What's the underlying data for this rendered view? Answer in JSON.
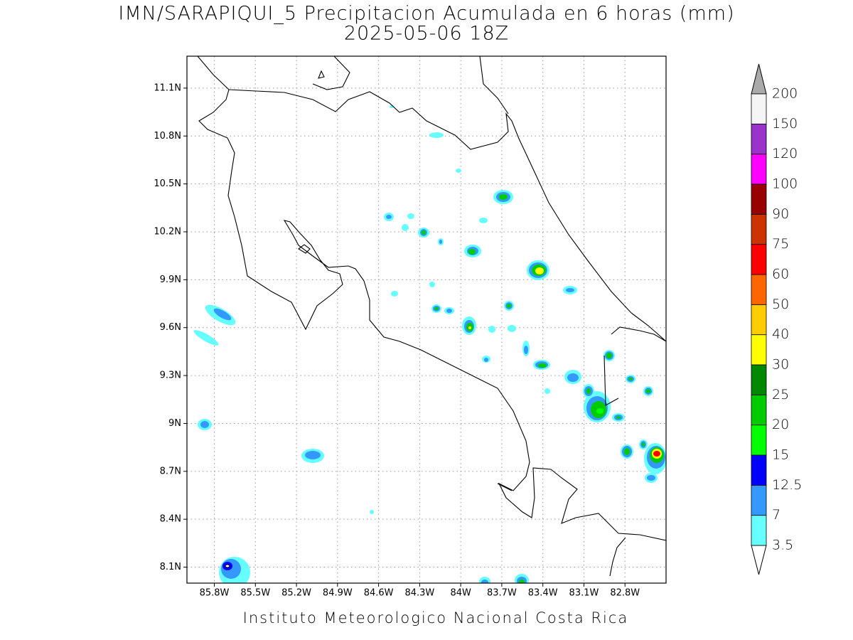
{
  "map": {
    "title": "IMN/SARAPIQUI_5 Precipitacion Acumulada en 6 horas (mm)",
    "subtitle": "2025-05-06 18Z",
    "footer": "Instituto Meteorologico Nacional Costa Rica",
    "xlim": [
      -86.0,
      -82.5
    ],
    "ylim": [
      8.0,
      11.3
    ],
    "xticks": [
      {
        "value": -85.8,
        "label": "85.8W"
      },
      {
        "value": -85.5,
        "label": "85.5W"
      },
      {
        "value": -85.2,
        "label": "85.2W"
      },
      {
        "value": -84.9,
        "label": "84.9W"
      },
      {
        "value": -84.6,
        "label": "84.6W"
      },
      {
        "value": -84.3,
        "label": "84.3W"
      },
      {
        "value": -84.0,
        "label": "84W"
      },
      {
        "value": -83.7,
        "label": "83.7W"
      },
      {
        "value": -83.4,
        "label": "83.4W"
      },
      {
        "value": -83.1,
        "label": "83.1W"
      },
      {
        "value": -82.8,
        "label": "82.8W"
      }
    ],
    "yticks": [
      {
        "value": 8.1,
        "label": "8.1N"
      },
      {
        "value": 8.4,
        "label": "8.4N"
      },
      {
        "value": 8.7,
        "label": "8.7N"
      },
      {
        "value": 9.0,
        "label": "9N"
      },
      {
        "value": 9.3,
        "label": "9.3N"
      },
      {
        "value": 9.6,
        "label": "9.6N"
      },
      {
        "value": 9.9,
        "label": "9.9N"
      },
      {
        "value": 10.2,
        "label": "10.2N"
      },
      {
        "value": 10.5,
        "label": "10.5N"
      },
      {
        "value": 10.8,
        "label": "10.8N"
      },
      {
        "value": 11.1,
        "label": "11.1N"
      }
    ],
    "grid": true
  },
  "colorbar": {
    "levels": [
      3.5,
      7,
      12.5,
      15,
      20,
      25,
      30,
      40,
      50,
      60,
      75,
      90,
      100,
      120,
      150,
      200
    ],
    "colors": [
      "#66ffff",
      "#3399ff",
      "#0000ff",
      "#00ff00",
      "#00cc00",
      "#008800",
      "#ffff00",
      "#ffcc00",
      "#ff6600",
      "#ff0000",
      "#cc3300",
      "#990000",
      "#ff00ff",
      "#9933cc",
      "#f5f5f5"
    ],
    "under_color": "#ffffff",
    "over_color": "#aaaaaa"
  }
}
